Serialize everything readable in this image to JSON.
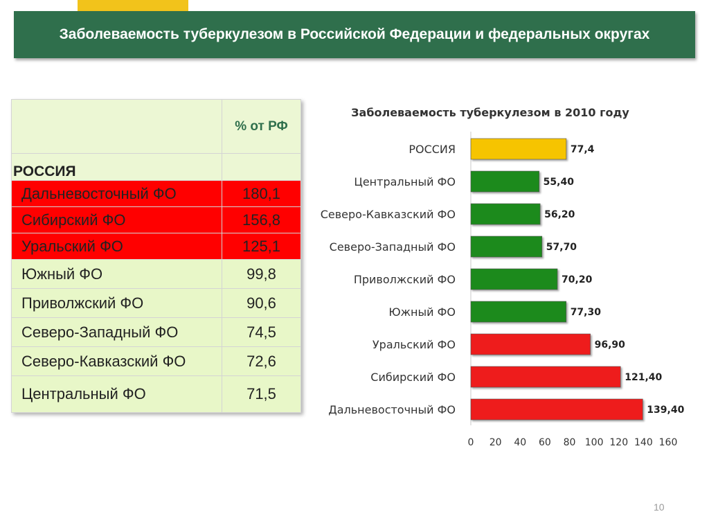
{
  "slide": {
    "title": "Заболеваемость туберкулезом в Российской Федерации и федеральных округах",
    "page_number": "10"
  },
  "table": {
    "header_value": "% от РФ",
    "russia_label": "РОССИЯ",
    "rows": [
      {
        "name": "Дальневосточный  ФО",
        "value": "180,1",
        "highlight": "red"
      },
      {
        "name": "Сибирский   ФО",
        "value": "156,8",
        "highlight": "red"
      },
      {
        "name": "Уральский  ФО",
        "value": "125,1",
        "highlight": "red"
      },
      {
        "name": "Южный  ФО",
        "value": "99,8",
        "highlight": "green"
      },
      {
        "name": "Приволжский  ФО",
        "value": "90,6",
        "highlight": "green"
      },
      {
        "name": "Северо-Западный  ФО",
        "value": "74,5",
        "highlight": "green"
      },
      {
        "name": "Северо-Кавказский  ФО",
        "value": "72,6",
        "highlight": "green"
      },
      {
        "name": "Центральный  ФО",
        "value": "71,5",
        "highlight": "green"
      }
    ]
  },
  "chart_data": {
    "type": "bar",
    "orientation": "horizontal",
    "title": "Заболеваемость туберкулезом в 2010 году",
    "categories": [
      "РОССИЯ",
      "Центральный  ФО",
      "Северо-Кавказский ФО",
      "Северо-Западный  ФО",
      "Приволжский  ФО",
      "Южный  ФО",
      "Уральский  ФО",
      "Сибирский  ФО",
      "Дальневосточный  ФО"
    ],
    "values": [
      77.4,
      55.4,
      56.2,
      57.7,
      70.2,
      77.3,
      96.9,
      121.4,
      139.4
    ],
    "value_labels": [
      "77,4",
      "55,40",
      "56,20",
      "57,70",
      "70,20",
      "77,30",
      "96,90",
      "121,40",
      "139,40"
    ],
    "bar_colors": [
      "#f6c400",
      "#1f8a1f",
      "#1f8a1f",
      "#1f8a1f",
      "#1f8a1f",
      "#1f8a1f",
      "#ee1c1c",
      "#ee1c1c",
      "#ee1c1c"
    ],
    "xlim": [
      0,
      160
    ],
    "x_ticks": [
      0,
      20,
      40,
      60,
      80,
      100,
      120,
      140,
      160
    ],
    "grid": false,
    "legend": "none"
  }
}
